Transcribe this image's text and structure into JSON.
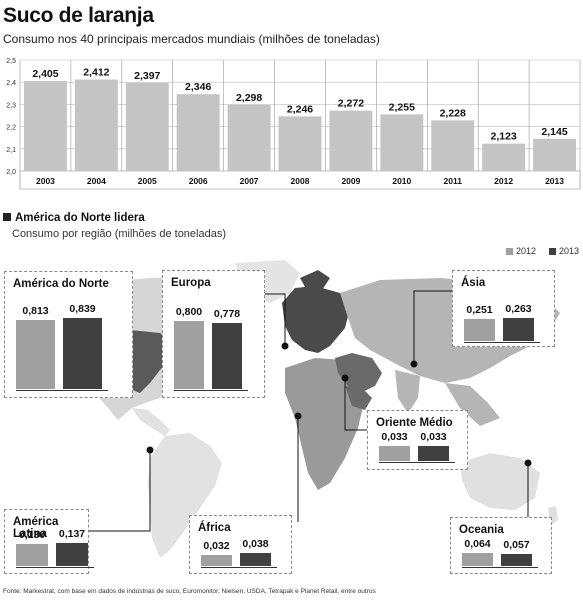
{
  "title": "Suco de laranja",
  "subtitle": "Consumo nos 40 principais mercados mundiais (milhões de toneladas)",
  "chart_data": [
    {
      "type": "bar",
      "title": "Suco de laranja",
      "subtitle": "Consumo nos 40 principais mercados mundiais (milhões de toneladas)",
      "categories": [
        "2003",
        "2004",
        "2005",
        "2006",
        "2007",
        "2008",
        "2009",
        "2010",
        "2011",
        "2012",
        "2013"
      ],
      "values": [
        2.405,
        2.412,
        2.397,
        2.346,
        2.298,
        2.246,
        2.272,
        2.255,
        2.228,
        2.123,
        2.145
      ],
      "value_labels": [
        "2,405",
        "2,412",
        "2,397",
        "2,346",
        "2,298",
        "2,246",
        "2,272",
        "2,255",
        "2,228",
        "2,123",
        "2,145"
      ],
      "yticks": [
        "2,0",
        "2,1",
        "2,2",
        "2,3",
        "2,4",
        "2,5"
      ],
      "ylim": [
        2.0,
        2.5
      ],
      "grid": true,
      "color": "#c4c4c4"
    },
    {
      "type": "bar",
      "title": "América do Norte lidera",
      "subtitle": "Consumo por região (milhões de toneladas)",
      "series_names": [
        "2012",
        "2013"
      ],
      "series_colors": [
        "#a0a0a0",
        "#404040"
      ],
      "legend": "top-right",
      "regions": [
        {
          "name": "América do Norte",
          "v2012": 0.813,
          "v2013": 0.839,
          "l2012": "0,813",
          "l2013": "0,839"
        },
        {
          "name": "Europa",
          "v2012": 0.8,
          "v2013": 0.778,
          "l2012": "0,800",
          "l2013": "0,778"
        },
        {
          "name": "Ásia",
          "v2012": 0.251,
          "v2013": 0.263,
          "l2012": "0,251",
          "l2013": "0,263"
        },
        {
          "name": "Oriente Médio",
          "v2012": 0.033,
          "v2013": 0.033,
          "l2012": "0,033",
          "l2013": "0,033"
        },
        {
          "name": "América Latina",
          "v2012": 0.13,
          "v2013": 0.137,
          "l2012": "0,130",
          "l2013": "0,137"
        },
        {
          "name": "África",
          "v2012": 0.032,
          "v2013": 0.038,
          "l2012": "0,032",
          "l2013": "0,038"
        },
        {
          "name": "Oceania",
          "v2012": 0.064,
          "v2013": 0.057,
          "l2012": "0,064",
          "l2013": "0,057"
        }
      ]
    }
  ],
  "section": {
    "title": "América do Norte lidera",
    "subtitle": "Consumo por região (milhões de toneladas)"
  },
  "legend": {
    "label_2012": "2012",
    "label_2013": "2013"
  },
  "source": "Fonte: Markestrat, com base em dados de indústrias de suco, Euromonitor, Nielsen, USDA, Tetrapak e Planet Retail, entre outros"
}
